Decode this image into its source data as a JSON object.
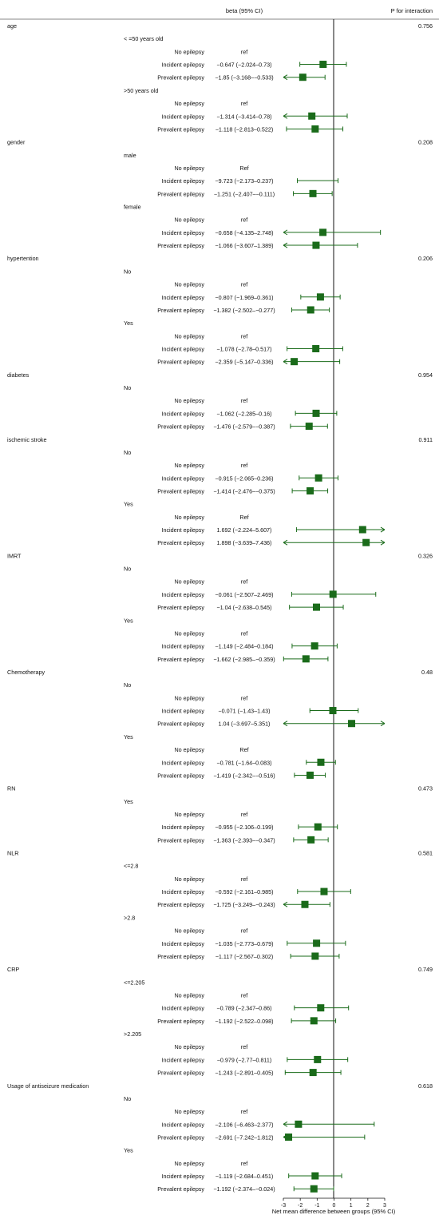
{
  "chart_data": {
    "type": "forest",
    "header_estimate": "beta (95% CI)",
    "header_p": "P for interaction",
    "xlabel": "Net mean difference between groups (95% CI)",
    "xlim": [
      -3,
      3
    ],
    "xticks": [
      -3,
      -2,
      -1,
      0,
      1,
      2,
      3
    ],
    "reference_line": 0,
    "marker_color": "#1a6b1a",
    "rows": [
      {
        "level": 0,
        "label": "age",
        "p": "0.756"
      },
      {
        "level": 1,
        "label": "< =50 years old"
      },
      {
        "level": 2,
        "label": "No epilepsy",
        "est_text": "ref"
      },
      {
        "level": 2,
        "label": "Incident epilepsy",
        "est_text": "−0.647 (−2.024–0.73)",
        "beta": -0.647,
        "lo": -2.024,
        "hi": 0.73
      },
      {
        "level": 2,
        "label": "Prevalent epilepsy",
        "est_text": "−1.85 (−3.168–−0.533)",
        "beta": -1.85,
        "lo": -3.168,
        "hi": -0.533
      },
      {
        "level": 1,
        "label": ">50 years old"
      },
      {
        "level": 2,
        "label": "No epilepsy",
        "est_text": "ref"
      },
      {
        "level": 2,
        "label": "Incident epilepsy",
        "est_text": "−1.314 (−3.414–0.78)",
        "beta": -1.314,
        "lo": -3.414,
        "hi": 0.78
      },
      {
        "level": 2,
        "label": "Prevalent epilepsy",
        "est_text": "−1.118 (−2.813–0.522)",
        "beta": -1.118,
        "lo": -2.813,
        "hi": 0.522
      },
      {
        "level": 0,
        "label": "gender",
        "p": "0.208"
      },
      {
        "level": 1,
        "label": "male"
      },
      {
        "level": 2,
        "label": "No epilepsy",
        "est_text": "Ref"
      },
      {
        "level": 2,
        "label": "Incident epilepsy",
        "est_text": "−9.723 (−2.173–0.237)",
        "beta": -9.723,
        "lo": -2.173,
        "hi": 0.237
      },
      {
        "level": 2,
        "label": "Prevalent epilepsy",
        "est_text": "−1.251 (−2.407–−0.111)",
        "beta": -1.251,
        "lo": -2.407,
        "hi": -0.111
      },
      {
        "level": 1,
        "label": "female"
      },
      {
        "level": 2,
        "label": "No epilepsy",
        "est_text": "ref"
      },
      {
        "level": 2,
        "label": "Incident epilepsy",
        "est_text": "−0.658 (−4.135–2.748)",
        "beta": -0.658,
        "lo": -4.135,
        "hi": 2.748
      },
      {
        "level": 2,
        "label": "Prevalent epilepsy",
        "est_text": "−1.066 (−3.607–1.389)",
        "beta": -1.066,
        "lo": -3.607,
        "hi": 1.389
      },
      {
        "level": 0,
        "label": "hypertention",
        "p": "0.206"
      },
      {
        "level": 1,
        "label": "No"
      },
      {
        "level": 2,
        "label": "No epilepsy",
        "est_text": "ref"
      },
      {
        "level": 2,
        "label": "Incident epilepsy",
        "est_text": "−0.807 (−1.969–0.361)",
        "beta": -0.807,
        "lo": -1.969,
        "hi": 0.361
      },
      {
        "level": 2,
        "label": "Prevalent epilepsy",
        "est_text": "−1.382 (−2.502–−0.277)",
        "beta": -1.382,
        "lo": -2.502,
        "hi": -0.277
      },
      {
        "level": 1,
        "label": "Yes"
      },
      {
        "level": 2,
        "label": "No epilepsy",
        "est_text": "ref"
      },
      {
        "level": 2,
        "label": "Incident epilepsy",
        "est_text": "−1.078 (−2.78–0.517)",
        "beta": -1.078,
        "lo": -2.78,
        "hi": 0.517
      },
      {
        "level": 2,
        "label": "Prevalent epilepsy",
        "est_text": "−2.359 (−5.147–0.336)",
        "beta": -2.359,
        "lo": -5.147,
        "hi": 0.336
      },
      {
        "level": 0,
        "label": "diabetes",
        "p": "0.954"
      },
      {
        "level": 1,
        "label": "No"
      },
      {
        "level": 2,
        "label": "No epilepsy",
        "est_text": "ref"
      },
      {
        "level": 2,
        "label": "Incident epilepsy",
        "est_text": "−1.062 (−2.285–0.16)",
        "beta": -1.062,
        "lo": -2.285,
        "hi": 0.16
      },
      {
        "level": 2,
        "label": "Prevalent epilepsy",
        "est_text": "−1.476 (−2.579–−0.387)",
        "beta": -1.476,
        "lo": -2.579,
        "hi": -0.387
      },
      {
        "level": 0,
        "label": "ischemic stroke",
        "p": "0.911"
      },
      {
        "level": 1,
        "label": "No"
      },
      {
        "level": 2,
        "label": "No epilepsy",
        "est_text": "ref"
      },
      {
        "level": 2,
        "label": "Incident epilepsy",
        "est_text": "−0.915 (−2.065–0.236)",
        "beta": -0.915,
        "lo": -2.065,
        "hi": 0.236
      },
      {
        "level": 2,
        "label": "Prevalent epilepsy",
        "est_text": "−1.414 (−2.476–−0.375)",
        "beta": -1.414,
        "lo": -2.476,
        "hi": -0.375
      },
      {
        "level": 1,
        "label": "Yes"
      },
      {
        "level": 2,
        "label": "No epilepsy",
        "est_text": "Ref"
      },
      {
        "level": 2,
        "label": "Incident epilepsy",
        "est_text": "1.692 (−2.224–5.607)",
        "beta": 1.692,
        "lo": -2.224,
        "hi": 5.607
      },
      {
        "level": 2,
        "label": "Prevalent epilepsy",
        "est_text": "1.898 (−3.639–7.436)",
        "beta": 1.898,
        "lo": -3.639,
        "hi": 7.436
      },
      {
        "level": 0,
        "label": "IMRT",
        "p": "0.326"
      },
      {
        "level": 1,
        "label": "No"
      },
      {
        "level": 2,
        "label": "No epilepsy",
        "est_text": "ref"
      },
      {
        "level": 2,
        "label": "Incident epilepsy",
        "est_text": "−0.061 (−2.507–2.469)",
        "beta": -0.061,
        "lo": -2.507,
        "hi": 2.469
      },
      {
        "level": 2,
        "label": "Prevalent epilepsy",
        "est_text": "−1.04 (−2.638–0.545)",
        "beta": -1.04,
        "lo": -2.638,
        "hi": 0.545
      },
      {
        "level": 1,
        "label": "Yes"
      },
      {
        "level": 2,
        "label": "No epilepsy",
        "est_text": "ref"
      },
      {
        "level": 2,
        "label": "Incident epilepsy",
        "est_text": "−1.149 (−2.484–0.184)",
        "beta": -1.149,
        "lo": -2.484,
        "hi": 0.184
      },
      {
        "level": 2,
        "label": "Prevalent epilepsy",
        "est_text": "−1.662 (−2.985–−0.359)",
        "beta": -1.662,
        "lo": -2.985,
        "hi": -0.359
      },
      {
        "level": 0,
        "label": "Chemotherapy",
        "p": "0.48"
      },
      {
        "level": 1,
        "label": "No"
      },
      {
        "level": 2,
        "label": "No epilepsy",
        "est_text": "ref"
      },
      {
        "level": 2,
        "label": "Incident epilepsy",
        "est_text": "−0.071 (−1.43–1.43)",
        "beta": -0.071,
        "lo": -1.43,
        "hi": 1.43
      },
      {
        "level": 2,
        "label": "Prevalent epilepsy",
        "est_text": "1.04 (−3.697–5.351)",
        "beta": 1.04,
        "lo": -3.697,
        "hi": 5.351
      },
      {
        "level": 1,
        "label": "Yes"
      },
      {
        "level": 2,
        "label": "No epilepsy",
        "est_text": "Ref"
      },
      {
        "level": 2,
        "label": "Incident epilepsy",
        "est_text": "−0.781 (−1.64–0.083)",
        "beta": -0.781,
        "lo": -1.64,
        "hi": 0.083
      },
      {
        "level": 2,
        "label": "Prevalent epilepsy",
        "est_text": "−1.419 (−2.342–−0.516)",
        "beta": -1.419,
        "lo": -2.342,
        "hi": -0.516
      },
      {
        "level": 0,
        "label": "RN",
        "p": "0.473"
      },
      {
        "level": 1,
        "label": "Yes"
      },
      {
        "level": 2,
        "label": "No epilepsy",
        "est_text": "ref"
      },
      {
        "level": 2,
        "label": "Incident epilepsy",
        "est_text": "−0.955 (−2.106–0.199)",
        "beta": -0.955,
        "lo": -2.106,
        "hi": 0.199
      },
      {
        "level": 2,
        "label": "Prevalent epilepsy",
        "est_text": "−1.363 (−2.393–−0.347)",
        "beta": -1.363,
        "lo": -2.393,
        "hi": -0.347
      },
      {
        "level": 0,
        "label": "NLR",
        "p": "0.581"
      },
      {
        "level": 1,
        "label": "<=2.8"
      },
      {
        "level": 2,
        "label": "No epilepsy",
        "est_text": "ref"
      },
      {
        "level": 2,
        "label": "Incident epilepsy",
        "est_text": "−0.592 (−2.161–0.985)",
        "beta": -0.592,
        "lo": -2.161,
        "hi": 0.985
      },
      {
        "level": 2,
        "label": "Prevalent epilepsy",
        "est_text": "−1.725 (−3.249–−0.243)",
        "beta": -1.725,
        "lo": -3.249,
        "hi": -0.243
      },
      {
        "level": 1,
        "label": ">2.8"
      },
      {
        "level": 2,
        "label": "No epilepsy",
        "est_text": "ref"
      },
      {
        "level": 2,
        "label": "Incident epilepsy",
        "est_text": "−1.035 (−2.773–0.679)",
        "beta": -1.035,
        "lo": -2.773,
        "hi": 0.679
      },
      {
        "level": 2,
        "label": "Prevalent epilepsy",
        "est_text": "−1.117 (−2.567–0.302)",
        "beta": -1.117,
        "lo": -2.567,
        "hi": 0.302
      },
      {
        "level": 0,
        "label": "CRP",
        "p": "0.749"
      },
      {
        "level": 1,
        "label": "<=2.205"
      },
      {
        "level": 2,
        "label": "No epilepsy",
        "est_text": "ref"
      },
      {
        "level": 2,
        "label": "Incident epilepsy",
        "est_text": "−0.789 (−2.347–0.86)",
        "beta": -0.789,
        "lo": -2.347,
        "hi": 0.86
      },
      {
        "level": 2,
        "label": "Prevalent epilepsy",
        "est_text": "−1.192 (−2.522–0.098)",
        "beta": -1.192,
        "lo": -2.522,
        "hi": 0.098
      },
      {
        "level": 1,
        "label": ">2.205"
      },
      {
        "level": 2,
        "label": "No epilepsy",
        "est_text": "ref"
      },
      {
        "level": 2,
        "label": "Incident epilepsy",
        "est_text": "−0.979 (−2.77–0.811)",
        "beta": -0.979,
        "lo": -2.77,
        "hi": 0.811
      },
      {
        "level": 2,
        "label": "Prevalent epilepsy",
        "est_text": "−1.243 (−2.891–0.405)",
        "beta": -1.243,
        "lo": -2.891,
        "hi": 0.405
      },
      {
        "level": 0,
        "label": "Usage of antiseizure medication",
        "p": "0.618"
      },
      {
        "level": 1,
        "label": "No"
      },
      {
        "level": 2,
        "label": "No epilepsy",
        "est_text": "ref"
      },
      {
        "level": 2,
        "label": "Incident epilepsy",
        "est_text": "−2.106 (−6.463–2.377)",
        "beta": -2.106,
        "lo": -6.463,
        "hi": 2.377
      },
      {
        "level": 2,
        "label": "Prevalent epilepsy",
        "est_text": "−2.691 (−7.242–1.812)",
        "beta": -2.691,
        "lo": -7.242,
        "hi": 1.812
      },
      {
        "level": 1,
        "label": "Yes"
      },
      {
        "level": 2,
        "label": "No epilepsy",
        "est_text": "ref"
      },
      {
        "level": 2,
        "label": "Incident epilepsy",
        "est_text": "−1.119 (−2.684–0.451)",
        "beta": -1.119,
        "lo": -2.684,
        "hi": 0.451
      },
      {
        "level": 2,
        "label": "Prevalent epilepsy",
        "est_text": "−1.192 (−2.374–−0.024)",
        "beta": -1.192,
        "lo": -2.374,
        "hi": -0.024
      }
    ]
  }
}
